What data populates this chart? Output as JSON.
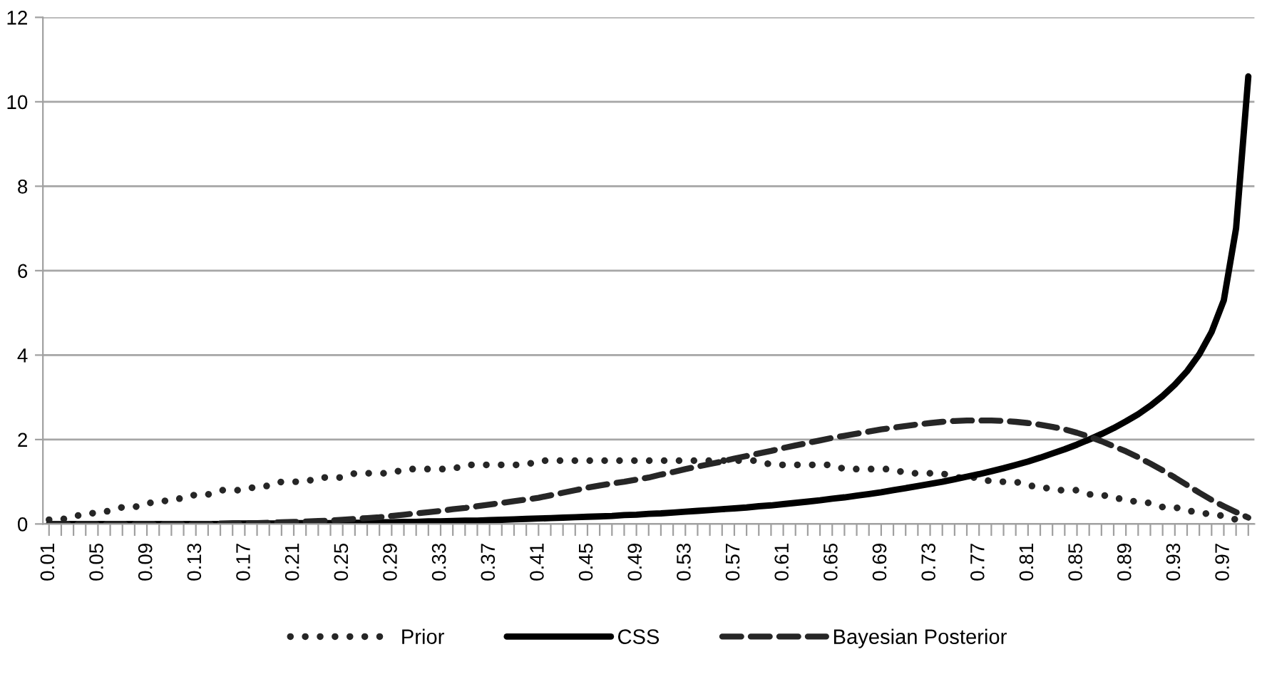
{
  "chart_data": {
    "type": "line",
    "categories": [
      "0.01",
      null,
      null,
      null,
      "0.05",
      null,
      null,
      null,
      "0.09",
      null,
      null,
      null,
      "0.13",
      null,
      null,
      null,
      "0.17",
      null,
      null,
      null,
      "0.21",
      null,
      null,
      null,
      "0.25",
      null,
      null,
      null,
      "0.29",
      null,
      null,
      null,
      "0.33",
      null,
      null,
      null,
      "0.37",
      null,
      null,
      null,
      "0.41",
      null,
      null,
      null,
      "0.45",
      null,
      null,
      null,
      "0.49",
      null,
      null,
      null,
      "0.53",
      null,
      null,
      null,
      "0.57",
      null,
      null,
      null,
      "0.61",
      null,
      null,
      null,
      "0.65",
      null,
      null,
      null,
      "0.69",
      null,
      null,
      null,
      "0.73",
      null,
      null,
      null,
      "0.77",
      null,
      null,
      null,
      "0.81",
      null,
      null,
      null,
      "0.85",
      null,
      null,
      null,
      "0.89",
      null,
      null,
      null,
      "0.93",
      null,
      null,
      null,
      "0.97",
      null,
      null
    ],
    "series": [
      {
        "name": "Prior",
        "color": "#262626",
        "line_style": "dotted",
        "values": [
          0.1,
          0.1,
          0.2,
          0.2,
          0.3,
          0.3,
          0.4,
          0.4,
          0.5,
          0.5,
          0.6,
          0.6,
          0.7,
          0.7,
          0.8,
          0.8,
          0.8,
          0.9,
          0.9,
          1.0,
          1.0,
          1.0,
          1.1,
          1.1,
          1.1,
          1.2,
          1.2,
          1.2,
          1.2,
          1.3,
          1.3,
          1.3,
          1.3,
          1.3,
          1.4,
          1.4,
          1.4,
          1.4,
          1.4,
          1.4,
          1.5,
          1.5,
          1.5,
          1.5,
          1.5,
          1.5,
          1.5,
          1.5,
          1.5,
          1.5,
          1.5,
          1.5,
          1.5,
          1.5,
          1.5,
          1.5,
          1.5,
          1.5,
          1.5,
          1.4,
          1.4,
          1.4,
          1.4,
          1.4,
          1.4,
          1.3,
          1.3,
          1.3,
          1.3,
          1.3,
          1.2,
          1.2,
          1.2,
          1.2,
          1.1,
          1.1,
          1.1,
          1.0,
          1.0,
          1.0,
          0.9,
          0.9,
          0.8,
          0.8,
          0.8,
          0.7,
          0.7,
          0.6,
          0.6,
          0.5,
          0.5,
          0.4,
          0.4,
          0.3,
          0.3,
          0.2,
          0.2,
          0.1,
          0.1
        ]
      },
      {
        "name": "CSS",
        "color": "#000000",
        "line_style": "solid",
        "values": [
          0,
          0,
          0,
          0,
          0,
          0,
          0,
          0,
          0,
          0,
          0,
          0,
          0,
          0,
          0,
          0.01,
          0.01,
          0.01,
          0.01,
          0.01,
          0.02,
          0.02,
          0.02,
          0.02,
          0.03,
          0.03,
          0.03,
          0.04,
          0.04,
          0.05,
          0.05,
          0.06,
          0.06,
          0.07,
          0.08,
          0.08,
          0.09,
          0.1,
          0.11,
          0.12,
          0.13,
          0.14,
          0.15,
          0.16,
          0.17,
          0.18,
          0.19,
          0.21,
          0.22,
          0.24,
          0.25,
          0.27,
          0.29,
          0.31,
          0.33,
          0.35,
          0.37,
          0.39,
          0.42,
          0.44,
          0.47,
          0.5,
          0.53,
          0.56,
          0.6,
          0.63,
          0.67,
          0.71,
          0.75,
          0.8,
          0.85,
          0.9,
          0.95,
          1.0,
          1.06,
          1.12,
          1.18,
          1.25,
          1.32,
          1.4,
          1.48,
          1.57,
          1.67,
          1.77,
          1.88,
          2.0,
          2.13,
          2.27,
          2.43,
          2.6,
          2.8,
          3.03,
          3.3,
          3.62,
          4.02,
          4.55,
          5.3,
          7.0,
          10.6
        ]
      },
      {
        "name": "Bayesian Posterior",
        "color": "#262626",
        "line_style": "dashed",
        "values": [
          0,
          0,
          0,
          0,
          0,
          0,
          0,
          0,
          0,
          0,
          0,
          0,
          0,
          0,
          0.01,
          0.01,
          0.02,
          0.02,
          0.03,
          0.04,
          0.05,
          0.06,
          0.07,
          0.08,
          0.1,
          0.12,
          0.14,
          0.16,
          0.19,
          0.22,
          0.25,
          0.28,
          0.31,
          0.35,
          0.38,
          0.42,
          0.46,
          0.5,
          0.54,
          0.58,
          0.62,
          0.68,
          0.74,
          0.8,
          0.86,
          0.91,
          0.96,
          1.0,
          1.05,
          1.1,
          1.17,
          1.23,
          1.3,
          1.36,
          1.42,
          1.48,
          1.55,
          1.61,
          1.67,
          1.73,
          1.8,
          1.86,
          1.92,
          1.98,
          2.04,
          2.09,
          2.14,
          2.19,
          2.24,
          2.28,
          2.32,
          2.36,
          2.39,
          2.42,
          2.44,
          2.45,
          2.45,
          2.45,
          2.44,
          2.42,
          2.39,
          2.35,
          2.3,
          2.24,
          2.16,
          2.07,
          1.96,
          1.84,
          1.72,
          1.58,
          1.43,
          1.27,
          1.1,
          0.92,
          0.74,
          0.57,
          0.42,
          0.28,
          0.15
        ]
      }
    ],
    "ylim": [
      0,
      12
    ],
    "yticks": [
      0,
      2,
      4,
      6,
      8,
      10,
      12
    ],
    "grid": "y",
    "legend": "bottom"
  }
}
